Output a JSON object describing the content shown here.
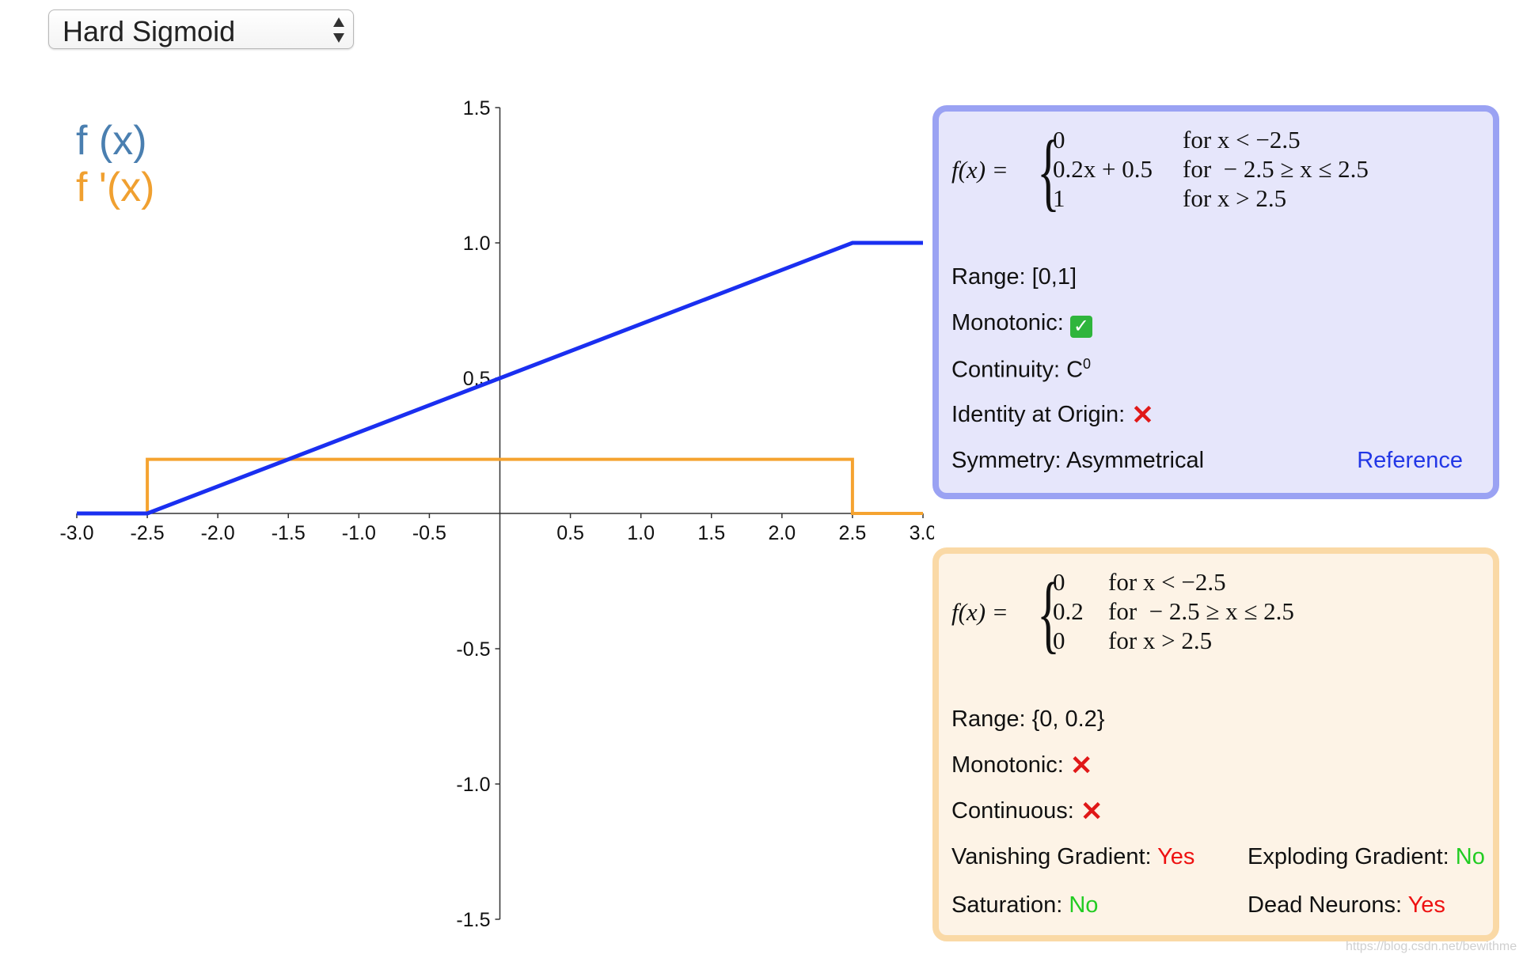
{
  "selector": {
    "value": "Hard Sigmoid"
  },
  "legend": {
    "f": "f (x)",
    "fprime": "f '(x)"
  },
  "chart_data": {
    "type": "line",
    "xlim": [
      -3.0,
      3.0
    ],
    "ylim": [
      -1.5,
      1.5
    ],
    "x_ticks": [
      "-3.0",
      "-2.5",
      "-2.0",
      "-1.5",
      "-1.0",
      "-0.5",
      "0.5",
      "1.0",
      "1.5",
      "2.0",
      "2.5",
      "3.0"
    ],
    "y_ticks": [
      "1.5",
      "1.0",
      "0.5",
      "-0.5",
      "-1.0",
      "-1.5"
    ],
    "series": [
      {
        "name": "f (x)",
        "color": "#1a2ff0",
        "x": [
          -3.0,
          -2.5,
          2.5,
          3.0
        ],
        "y": [
          0.0,
          0.0,
          1.0,
          1.0
        ]
      },
      {
        "name": "f '(x)",
        "color": "#f5a330",
        "x": [
          -3.0,
          -2.5,
          -2.5,
          2.5,
          2.5,
          3.0
        ],
        "y": [
          0.0,
          0.0,
          0.2,
          0.2,
          0.0,
          0.0
        ]
      }
    ]
  },
  "function_panel": {
    "lhs": "f(x) =",
    "cases": [
      {
        "value": "0",
        "condition": "for x < −2.5"
      },
      {
        "value": "0.2x + 0.5",
        "condition": "for  − 2.5 ≥ x ≤ 2.5"
      },
      {
        "value": "1",
        "condition": "for x > 2.5"
      }
    ],
    "range": "Range: [0,1]",
    "monotonic": "Monotonic:",
    "continuity": "Continuity: C",
    "continuity_sup": "0",
    "identity": "Identity at Origin:",
    "symmetry": "Symmetry: Asymmetrical",
    "reference": "Reference",
    "check_icon": "white-check-mark",
    "cross_icon": "red-cross-mark"
  },
  "derivative_panel": {
    "lhs": "f(x) =",
    "cases": [
      {
        "value": "0",
        "condition": "for x < −2.5"
      },
      {
        "value": "0.2",
        "condition": "for  − 2.5 ≥ x ≤ 2.5"
      },
      {
        "value": "0",
        "condition": "for x > 2.5"
      }
    ],
    "range": "Range: {0, 0.2}",
    "monotonic": "Monotonic:",
    "continuous": "Continuous:",
    "vanishing_label": "Vanishing Gradient:",
    "vanishing_value": "Yes",
    "exploding_label": "Exploding Gradient:",
    "exploding_value": "No",
    "saturation_label": "Saturation:",
    "saturation_value": "No",
    "dead_label": "Dead Neurons:",
    "dead_value": "Yes"
  },
  "watermark": "https://blog.csdn.net/bewithme"
}
